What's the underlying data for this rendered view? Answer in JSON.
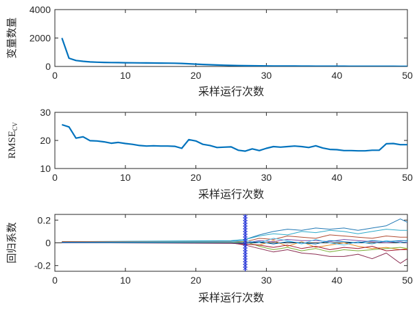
{
  "chart_data": [
    {
      "type": "line",
      "xlabel": "采样运行次数",
      "ylabel": "变量数量",
      "xlim": [
        0,
        50
      ],
      "ylim": [
        0,
        4000
      ],
      "xticks": [
        0,
        10,
        20,
        30,
        40,
        50
      ],
      "yticks": [
        0,
        2000,
        4000
      ],
      "grid": false,
      "series": [
        {
          "color": "#0072BD",
          "x": [
            1,
            2,
            3,
            4,
            5,
            6,
            7,
            8,
            9,
            10,
            11,
            12,
            13,
            14,
            15,
            16,
            17,
            18,
            19,
            20,
            21,
            22,
            23,
            24,
            25,
            26,
            27,
            28,
            29,
            30,
            31,
            32,
            33,
            34,
            35,
            36,
            37,
            38,
            39,
            40,
            41,
            42,
            43,
            44,
            45,
            46,
            47,
            48,
            49,
            50
          ],
          "values": [
            2000,
            580,
            420,
            360,
            320,
            300,
            285,
            275,
            268,
            260,
            255,
            250,
            245,
            240,
            235,
            230,
            225,
            210,
            190,
            165,
            140,
            120,
            100,
            85,
            72,
            62,
            55,
            48,
            42,
            38,
            34,
            31,
            29,
            27,
            25,
            23,
            21,
            20,
            19,
            18,
            17,
            16,
            15,
            15,
            14,
            14,
            13,
            13,
            12,
            12
          ]
        }
      ]
    },
    {
      "type": "line",
      "xlabel": "采样运行次数",
      "ylabel": "RMSE",
      "ylabel_sub": "CV",
      "xlim": [
        0,
        50
      ],
      "ylim": [
        10,
        30
      ],
      "xticks": [
        0,
        10,
        20,
        30,
        40,
        50
      ],
      "yticks": [
        10,
        20,
        30
      ],
      "grid": false,
      "series": [
        {
          "color": "#0072BD",
          "x": [
            1,
            2,
            3,
            4,
            5,
            6,
            7,
            8,
            9,
            10,
            11,
            12,
            13,
            14,
            15,
            16,
            17,
            18,
            19,
            20,
            21,
            22,
            23,
            24,
            25,
            26,
            27,
            28,
            29,
            30,
            31,
            32,
            33,
            34,
            35,
            36,
            37,
            38,
            39,
            40,
            41,
            42,
            43,
            44,
            45,
            46,
            47,
            48,
            49,
            50
          ],
          "values": [
            25.6,
            24.8,
            20.8,
            21.3,
            19.9,
            19.8,
            19.5,
            19.0,
            19.3,
            18.9,
            18.6,
            18.2,
            18.0,
            18.1,
            18.0,
            18.0,
            17.9,
            17.2,
            20.3,
            19.8,
            18.6,
            18.2,
            17.5,
            17.6,
            17.7,
            16.5,
            16.2,
            17.0,
            16.4,
            17.2,
            17.8,
            17.6,
            17.8,
            18.0,
            17.8,
            17.5,
            18.1,
            17.3,
            16.8,
            16.7,
            16.4,
            16.4,
            16.3,
            16.3,
            16.5,
            16.5,
            18.8,
            18.9,
            18.5,
            18.5
          ]
        }
      ]
    },
    {
      "type": "line",
      "xlabel": "采样运行次数",
      "ylabel": "回归系数",
      "xlim": [
        0,
        50
      ],
      "ylim": [
        -0.25,
        0.25
      ],
      "xticks": [
        0,
        10,
        20,
        30,
        40,
        50
      ],
      "yticks": [
        -0.2,
        0,
        0.2
      ],
      "ytick_labels": [
        "-0.2",
        "0",
        "0.2"
      ],
      "grid": false,
      "annotation": {
        "type": "vertical-marker-line",
        "x": 27,
        "color": "#1f2fd6"
      },
      "series": [
        {
          "color": "#1f77b4",
          "x": [
            1,
            25,
            27,
            29,
            31,
            33,
            35,
            37,
            39,
            41,
            43,
            45,
            47,
            49,
            50
          ],
          "values": [
            0.01,
            0.015,
            0.03,
            0.07,
            0.1,
            0.12,
            0.11,
            0.13,
            0.12,
            0.13,
            0.11,
            0.13,
            0.15,
            0.21,
            0.18
          ]
        },
        {
          "color": "#8a2b50",
          "x": [
            1,
            25,
            27,
            29,
            31,
            33,
            35,
            37,
            39,
            41,
            43,
            45,
            47,
            49,
            50
          ],
          "values": [
            0.005,
            0.0,
            -0.02,
            -0.05,
            -0.08,
            -0.06,
            -0.09,
            -0.1,
            -0.12,
            -0.12,
            -0.1,
            -0.14,
            -0.09,
            -0.18,
            -0.14
          ]
        },
        {
          "color": "#2ca9c9",
          "x": [
            1,
            25,
            27,
            29,
            31,
            33,
            35,
            37,
            39,
            41,
            43,
            45,
            47,
            49,
            50
          ],
          "values": [
            0.01,
            0.02,
            0.03,
            0.06,
            0.08,
            0.07,
            0.1,
            0.09,
            0.11,
            0.1,
            0.08,
            0.1,
            0.12,
            0.11,
            0.11
          ]
        },
        {
          "color": "#b04a30",
          "x": [
            1,
            25,
            27,
            29,
            31,
            33,
            35,
            37,
            39,
            41,
            43,
            45,
            47,
            49,
            50
          ],
          "values": [
            0.012,
            0.01,
            0.01,
            0.04,
            0.03,
            0.06,
            0.05,
            0.04,
            0.07,
            0.06,
            0.05,
            0.04,
            0.06,
            0.05,
            0.05
          ]
        },
        {
          "color": "#e58a1f",
          "x": [
            1,
            25,
            27,
            29,
            31,
            33,
            35,
            37,
            39,
            41,
            43,
            45,
            47,
            49,
            50
          ],
          "values": [
            0.008,
            0.005,
            -0.01,
            -0.02,
            0.02,
            -0.03,
            0.01,
            -0.04,
            -0.02,
            0.0,
            -0.03,
            -0.05,
            -0.04,
            -0.06,
            -0.05
          ]
        },
        {
          "color": "#7a4aa3",
          "x": [
            1,
            25,
            27,
            29,
            31,
            33,
            35,
            37,
            39,
            41,
            43,
            45,
            47,
            49,
            50
          ],
          "values": [
            0.0,
            0.0,
            0.0,
            0.02,
            0.01,
            0.03,
            0.02,
            0.02,
            0.01,
            0.03,
            0.02,
            0.01,
            0.0,
            0.01,
            0.0
          ]
        },
        {
          "color": "#77ac30",
          "x": [
            1,
            25,
            27,
            29,
            31,
            33,
            35,
            37,
            39,
            41,
            43,
            45,
            47,
            49,
            50
          ],
          "values": [
            0.004,
            0.0,
            0.01,
            -0.03,
            -0.06,
            -0.04,
            -0.07,
            -0.05,
            -0.08,
            -0.06,
            -0.07,
            -0.06,
            -0.05,
            -0.04,
            -0.05
          ]
        },
        {
          "color": "#4dbeee",
          "x": [
            1,
            25,
            27,
            29,
            31,
            33,
            35,
            37,
            39,
            41,
            43,
            45,
            47,
            49,
            50
          ],
          "values": [
            0.006,
            0.01,
            0.02,
            0.0,
            0.04,
            0.02,
            -0.01,
            0.03,
            0.0,
            -0.02,
            0.01,
            -0.01,
            0.02,
            0.0,
            0.01
          ]
        },
        {
          "color": "#a2142f",
          "x": [
            1,
            25,
            27,
            29,
            31,
            33,
            35,
            37,
            39,
            41,
            43,
            45,
            47,
            49,
            50
          ],
          "values": [
            0.002,
            -0.005,
            -0.01,
            -0.02,
            -0.04,
            -0.02,
            -0.05,
            -0.03,
            -0.06,
            -0.04,
            -0.05,
            -0.03,
            -0.07,
            -0.06,
            -0.06
          ]
        },
        {
          "color": "#0072bd",
          "x": [
            1,
            25,
            27,
            29,
            31,
            33,
            35,
            37,
            39,
            41,
            43,
            45,
            47,
            49,
            50
          ],
          "values": [
            0.003,
            0.0,
            -0.005,
            0.01,
            -0.01,
            0.01,
            0.0,
            -0.01,
            0.02,
            0.01,
            0.0,
            0.02,
            0.01,
            0.02,
            0.02
          ]
        }
      ]
    }
  ]
}
